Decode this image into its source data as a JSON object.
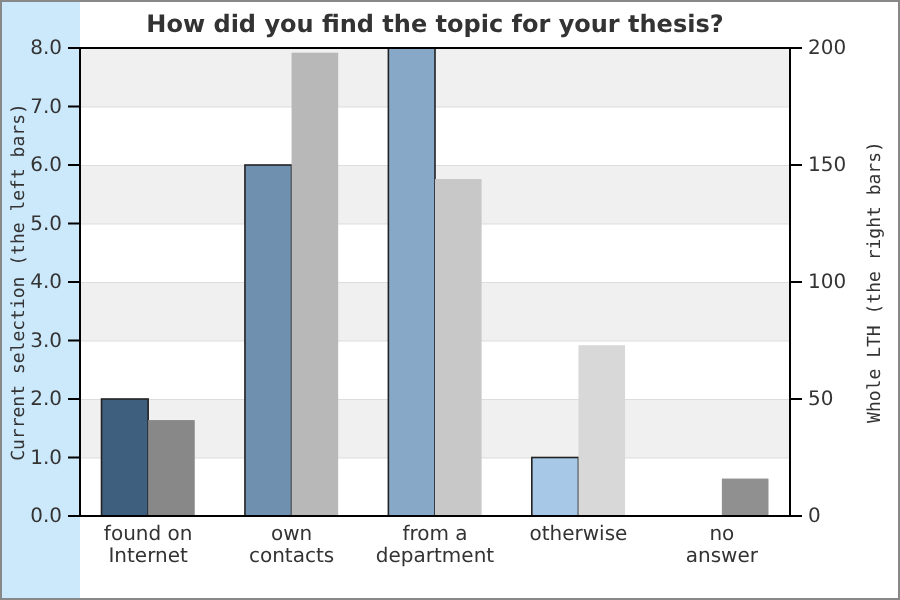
{
  "chart_data": {
    "type": "bar",
    "title": "How did you find the topic for your thesis?",
    "ylabel": "Current selection (the left bars)",
    "y2label": "Whole LTH (the right bars)",
    "categories": [
      "found on Internet",
      "own contacts",
      "from a department",
      "otherwise",
      "no answer"
    ],
    "series": [
      {
        "axis": "y",
        "colors": [
          "#3f5f7f",
          "#7090b0",
          "#88a8c8",
          "#a8c8e8",
          "#c0d8f0"
        ],
        "values": [
          2,
          6,
          8,
          1,
          0
        ]
      },
      {
        "axis": "y2",
        "colors": [
          "#888888",
          "#b8b8b8",
          "#c8c8c8",
          "#d8d8d8",
          "#909090"
        ],
        "values": [
          41,
          198,
          144,
          73,
          16
        ]
      }
    ],
    "ylim": [
      0,
      8
    ],
    "yticks": [
      {
        "value": 0,
        "label": "0.0"
      },
      {
        "value": 1,
        "label": "1.0"
      },
      {
        "value": 2,
        "label": "2.0"
      },
      {
        "value": 3,
        "label": "3.0"
      },
      {
        "value": 4,
        "label": "4.0"
      },
      {
        "value": 5,
        "label": "5.0"
      },
      {
        "value": 6,
        "label": "6.0"
      },
      {
        "value": 7,
        "label": "7.0"
      },
      {
        "value": 8,
        "label": "8.0"
      }
    ],
    "y2lim": [
      0,
      200
    ],
    "y2ticks": [
      0,
      50,
      100,
      150,
      200
    ],
    "grid": "y"
  }
}
